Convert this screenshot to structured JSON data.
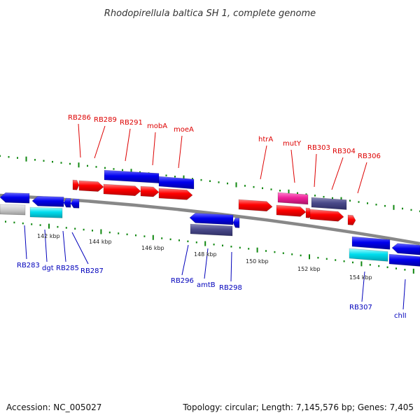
{
  "title": "Rhodopirellula baltica SH 1, complete genome",
  "footer": {
    "accession": "Accession: NC_005027",
    "summary": "Topology: circular; Length: 7,145,576 bp; Genes: 7,405"
  },
  "colors": {
    "forward": "#ff0000",
    "reverse": "#0000ee",
    "highlight_pink": "#ee2299",
    "highlight_slate": "#4a4a8a",
    "highlight_cyan": "#00ddee",
    "grey_gene": "#cccccc",
    "backbone": "#888888",
    "tick": "#118811",
    "label_forward": "#dd0000",
    "label_reverse": "#0000bb"
  },
  "scale_labels": [
    "142 kbp",
    "144 kbp",
    "146 kbp",
    "148 kbp",
    "150 kbp",
    "152 kbp",
    "154 kbp"
  ],
  "top_labels": [
    "RB286",
    "RB289",
    "RB291",
    "mobA",
    "moeA",
    "htrA",
    "mutY",
    "RB303",
    "RB304",
    "RB306"
  ],
  "bottom_labels": [
    "RB283",
    "dgt",
    "RB285",
    "RB287",
    "RB296",
    "amtB",
    "RB298",
    "RB307",
    "chlI"
  ]
}
